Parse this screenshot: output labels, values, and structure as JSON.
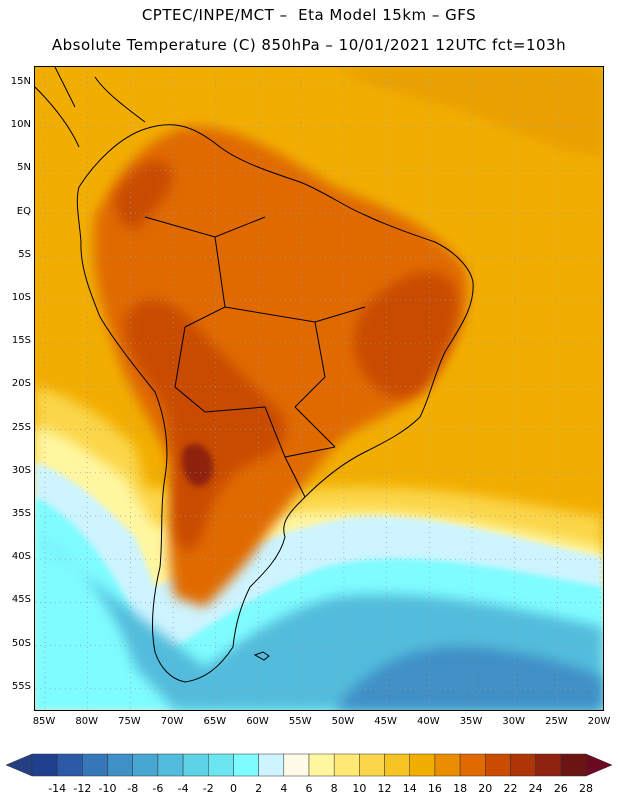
{
  "title_line1": "CPTEC/INPE/MCT –  Eta Model 15km – GFS",
  "title_line2": "Absolute Temperature (C) 850hPa – 10/01/2021 12UTC fct=103h",
  "lat_labels": [
    "15N",
    "10N",
    "5N",
    "EQ",
    "5S",
    "10S",
    "15S",
    "20S",
    "25S",
    "30S",
    "35S",
    "40S",
    "45S",
    "50S",
    "55S"
  ],
  "lon_labels": [
    "85W",
    "80W",
    "75W",
    "70W",
    "65W",
    "60W",
    "55W",
    "50W",
    "45W",
    "40W",
    "35W",
    "30W",
    "25W",
    "20W"
  ],
  "colorbar": {
    "labels": [
      "-14",
      "-12",
      "-10",
      "-8",
      "-6",
      "-4",
      "-2",
      "0",
      "2",
      "4",
      "6",
      "8",
      "10",
      "12",
      "14",
      "16",
      "18",
      "20",
      "22",
      "24",
      "26",
      "28"
    ],
    "colors": [
      "#1f3f8f",
      "#2c5aa8",
      "#3577b8",
      "#3f90c6",
      "#48a6d2",
      "#52bcdc",
      "#5ed2e6",
      "#6be6f0",
      "#7ffcff",
      "#cdf4ff",
      "#fffbe6",
      "#fff6a0",
      "#ffe873",
      "#fbd64a",
      "#f6c324",
      "#f1ad00",
      "#ea8d00",
      "#e06a00",
      "#c94c00",
      "#ad3508",
      "#8f2210",
      "#6b1412"
    ],
    "under_color": "#243f84",
    "over_color": "#6b0a20"
  },
  "field_colors": {
    "ocean_base": "#f2ae00",
    "north_atlantic": "#e9a000",
    "land_hot": "#e06a00",
    "land_hotter": "#c94c00",
    "land_hottest": "#8f2210",
    "mild": "#fbd64a",
    "cool": "#fff6a0",
    "cold1": "#cdf4ff",
    "cold2": "#7ffcff",
    "cold3": "#52bcdc",
    "cold4": "#3f90c6"
  }
}
